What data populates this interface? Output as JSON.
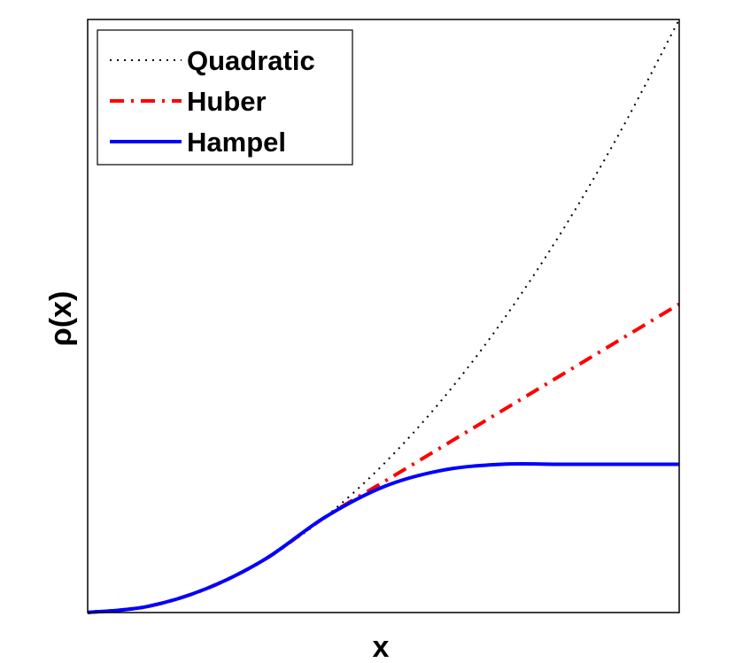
{
  "chart_data": {
    "type": "line",
    "xlabel": "x",
    "ylabel": "ρ(x)",
    "xlim": [
      0,
      5
    ],
    "ylim": [
      0,
      5
    ],
    "grid": false,
    "legend_position": "top-left",
    "series": [
      {
        "name": "Quadratic",
        "color": "#000000",
        "style": "dotted",
        "x": [
          0,
          0.5,
          1,
          1.5,
          2,
          2.5,
          3,
          3.5,
          4,
          4.5,
          5
        ],
        "y": [
          0,
          0.05,
          0.2,
          0.45,
          0.8,
          1.25,
          1.8,
          2.45,
          3.2,
          4.05,
          5.0
        ]
      },
      {
        "name": "Huber",
        "color": "#ff0000",
        "style": "dashdot",
        "x": [
          0,
          0.5,
          1,
          1.5,
          2,
          2.5,
          3,
          3.5,
          4,
          4.5,
          5
        ],
        "y": [
          0,
          0.05,
          0.2,
          0.45,
          0.8,
          1.1,
          1.4,
          1.7,
          2.0,
          2.3,
          2.6
        ]
      },
      {
        "name": "Hampel",
        "color": "#0000ff",
        "style": "solid",
        "x": [
          0,
          0.5,
          1,
          1.5,
          2,
          2.5,
          3,
          3.5,
          4,
          4.5,
          5
        ],
        "y": [
          0,
          0.05,
          0.2,
          0.45,
          0.8,
          1.06,
          1.2,
          1.25,
          1.25,
          1.25,
          1.25
        ]
      }
    ]
  }
}
